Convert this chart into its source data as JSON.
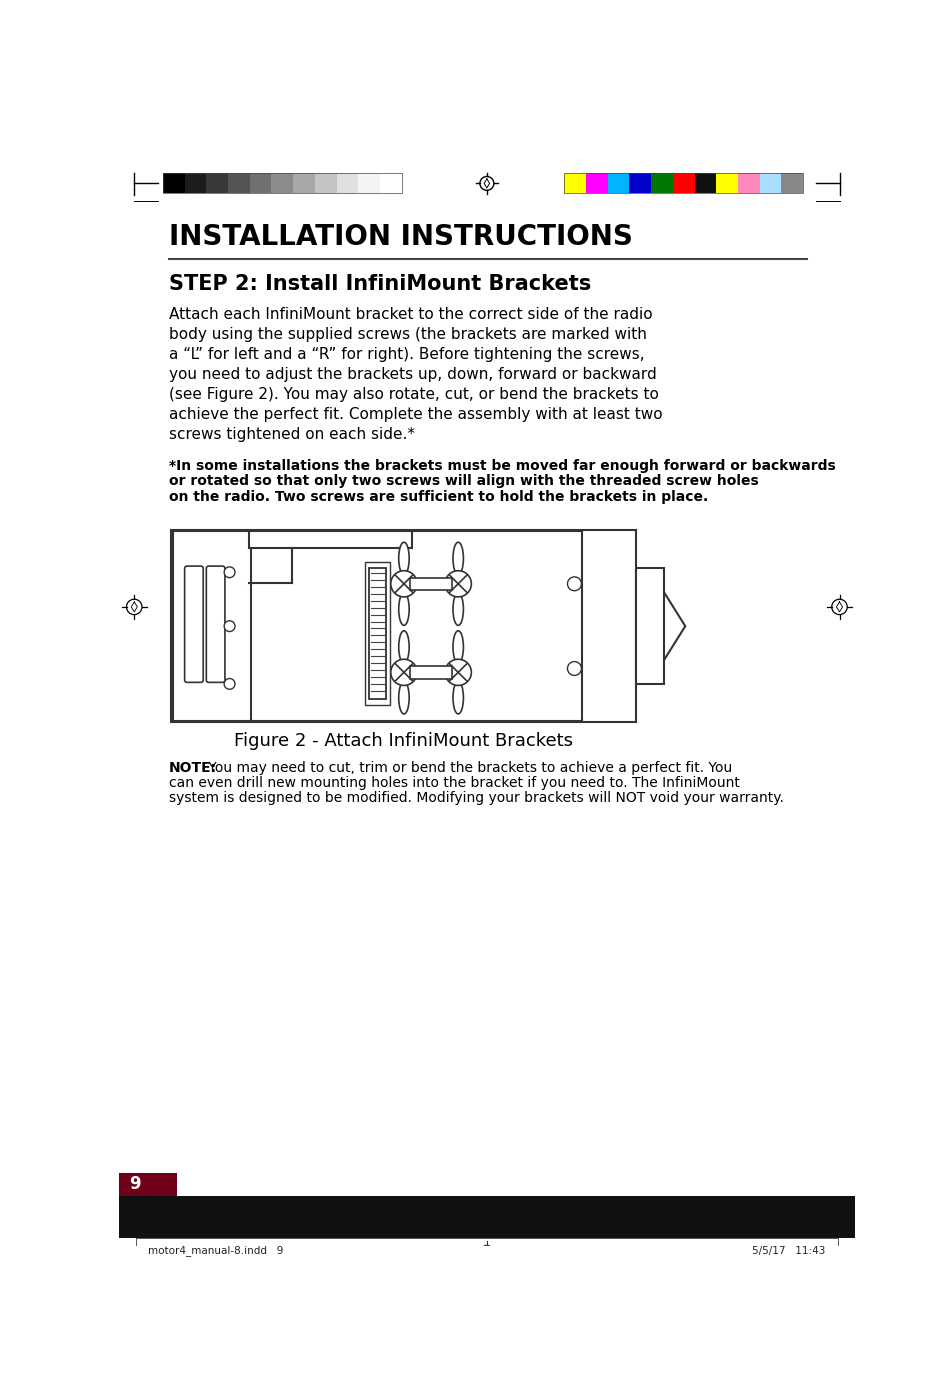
{
  "page_title": "INSTALLATION INSTRUCTIONS",
  "step_title": "STEP 2: Install InfiniMount Brackets",
  "body_text": "Attach each InfiniMount bracket to the correct side of the radio\nbody using the supplied screws (the brackets are marked with\na “L” for left and a “R” for right). Before tightening the screws,\nyou need to adjust the brackets up, down, forward or backward\n(see Figure 2). You may also rotate, cut, or bend the brackets to\nachieve the perfect fit. Complete the assembly with at least two\nscrews tightened on each side.*",
  "note_bold_text": "*In some installations the brackets must be moved far enough forward or backwards\nor rotated so that only two screws will align with the threaded screw holes\non the radio. Two screws are sufficient to hold the brackets in place.",
  "figure_caption": "Figure 2 - Attach InfiniMount Brackets",
  "note_text": "NOTE: You may need to cut, trim or bend the brackets to achieve a perfect fit. You\ncan even drill new mounting holes into the bracket if you need to. The InfiniMount\nsystem is designed to be modified. Modifying your brackets will NOT void your warranty.",
  "page_number": "9",
  "footer_left": "motor4_manual-8.indd   9",
  "footer_right": "5/5/17   11:43",
  "bg_color": "#ffffff",
  "text_color": "#000000",
  "footer_bg": "#111111",
  "page_num_bg": "#6e001a",
  "grayscale_bars": [
    "#000000",
    "#1c1c1c",
    "#383838",
    "#545454",
    "#707070",
    "#8c8c8c",
    "#a8a8a8",
    "#c4c4c4",
    "#e0e0e0",
    "#f4f4f4",
    "#ffffff"
  ],
  "color_bars": [
    "#ffff00",
    "#ff00ff",
    "#00b4ff",
    "#0000cc",
    "#007700",
    "#ff0000",
    "#111111",
    "#ffff00",
    "#ff88bb",
    "#aaddff",
    "#888888"
  ]
}
